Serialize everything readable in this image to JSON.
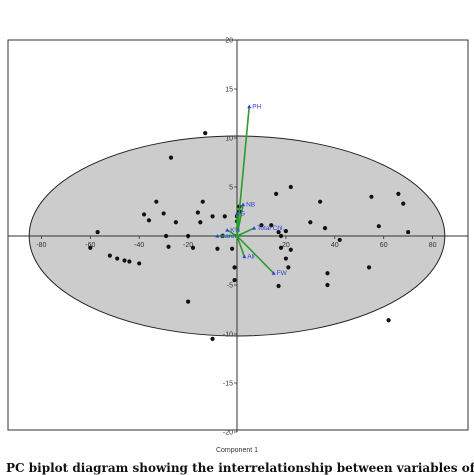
{
  "chart_data": {
    "type": "scatter",
    "title": "",
    "xlabel": "Component 1",
    "ylabel": "",
    "xlim": [
      -90,
      90
    ],
    "ylim": [
      -20,
      20
    ],
    "x_ticks": [
      -80,
      -60,
      -40,
      -20,
      20,
      40,
      60,
      80
    ],
    "y_ticks": [
      20,
      15,
      10,
      5,
      -5,
      -10,
      -15,
      -20
    ],
    "grid": false,
    "confidence_ellipse": {
      "center": [
        0,
        0
      ],
      "x_radius": 85,
      "y_radius": 10.2,
      "fill": "#cccccc"
    },
    "points": [
      {
        "x": -60,
        "y": -1.2
      },
      {
        "x": -57,
        "y": 0.4
      },
      {
        "x": -52,
        "y": -2
      },
      {
        "x": -49,
        "y": -2.3
      },
      {
        "x": -46,
        "y": -2.5
      },
      {
        "x": -44,
        "y": -2.6
      },
      {
        "x": -40,
        "y": -2.8
      },
      {
        "x": -38,
        "y": 2.2
      },
      {
        "x": -36,
        "y": 1.6
      },
      {
        "x": -33,
        "y": 3.5
      },
      {
        "x": -30,
        "y": 2.3
      },
      {
        "x": -29,
        "y": 0
      },
      {
        "x": -28,
        "y": -1.1
      },
      {
        "x": -27,
        "y": 8
      },
      {
        "x": -25,
        "y": 1.4
      },
      {
        "x": -20,
        "y": 0
      },
      {
        "x": -18,
        "y": -1.2
      },
      {
        "x": -16,
        "y": 2.4
      },
      {
        "x": -15,
        "y": 1.4
      },
      {
        "x": -14,
        "y": 3.5
      },
      {
        "x": -13,
        "y": 10.5
      },
      {
        "x": -10,
        "y": 2
      },
      {
        "x": -8,
        "y": -1.3
      },
      {
        "x": -6,
        "y": 0
      },
      {
        "x": -5,
        "y": 2
      },
      {
        "x": -2,
        "y": -1.3
      },
      {
        "x": -1,
        "y": -3.2
      },
      {
        "x": -1,
        "y": -4.5
      },
      {
        "x": 0,
        "y": 2
      },
      {
        "x": 0,
        "y": 1.5
      },
      {
        "x": 1,
        "y": 3
      },
      {
        "x": 1,
        "y": 2.5
      },
      {
        "x": -10,
        "y": -10.5
      },
      {
        "x": -20,
        "y": -6.7
      },
      {
        "x": 10,
        "y": 1.1
      },
      {
        "x": 14,
        "y": 1.1
      },
      {
        "x": 17,
        "y": 0.4
      },
      {
        "x": 18,
        "y": 0
      },
      {
        "x": 18,
        "y": -1.2
      },
      {
        "x": 20,
        "y": 0.5
      },
      {
        "x": 20,
        "y": -2.3
      },
      {
        "x": 22,
        "y": -1.4
      },
      {
        "x": 21,
        "y": -3.2
      },
      {
        "x": 17,
        "y": -5.1
      },
      {
        "x": 22,
        "y": 5
      },
      {
        "x": 16,
        "y": 4.3
      },
      {
        "x": 30,
        "y": 1.4
      },
      {
        "x": 34,
        "y": 3.5
      },
      {
        "x": 36,
        "y": 0.8
      },
      {
        "x": 37,
        "y": -3.8
      },
      {
        "x": 37,
        "y": -5
      },
      {
        "x": 42,
        "y": -0.4
      },
      {
        "x": 55,
        "y": 4
      },
      {
        "x": 58,
        "y": 1
      },
      {
        "x": 62,
        "y": -8.6
      },
      {
        "x": 66,
        "y": 4.3
      },
      {
        "x": 68,
        "y": 3.3
      },
      {
        "x": 70,
        "y": 0.4
      },
      {
        "x": 54,
        "y": -3.2
      }
    ],
    "loadings": [
      {
        "name": "PH",
        "x": 5,
        "y": 13.2,
        "color": "#2a9d2a"
      },
      {
        "name": "NB",
        "x": 2.5,
        "y": 3.2,
        "color": "#2a9d2a"
      },
      {
        "name": "G",
        "x": 0,
        "y": 2.3,
        "color": "#2a9d2a"
      },
      {
        "name": "Total Chl.",
        "x": 7,
        "y": 0.8,
        "color": "#2a9d2a"
      },
      {
        "name": "K%",
        "x": -4,
        "y": 0.6,
        "color": "#2a9d2a"
      },
      {
        "name": "Carot.",
        "x": -8,
        "y": 0,
        "color": "#2a9d2a"
      },
      {
        "name": "All",
        "x": 3,
        "y": -2.1,
        "color": "#2a9d2a"
      },
      {
        "name": "FW",
        "x": 15,
        "y": -3.8,
        "color": "#2a9d2a"
      }
    ],
    "caption": "PC biplot diagram showing the interrelationship between variables of the studied"
  }
}
